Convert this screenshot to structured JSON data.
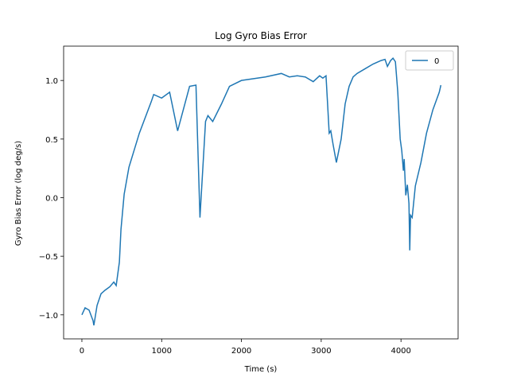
{
  "chart_data": {
    "type": "line",
    "title": "Log Gyro Bias Error",
    "x_label": "Time (s)",
    "y_label": "Gyro Bias Error (log deg/s)",
    "x": [
      0,
      40,
      90,
      140,
      150,
      190,
      240,
      290,
      350,
      400,
      430,
      470,
      490,
      530,
      590,
      720,
      870,
      900,
      1000,
      1100,
      1200,
      1350,
      1430,
      1480,
      1550,
      1580,
      1640,
      1750,
      1850,
      2000,
      2300,
      2500,
      2600,
      2700,
      2800,
      2900,
      2980,
      3020,
      3060,
      3080,
      3100,
      3120,
      3150,
      3190,
      3250,
      3300,
      3350,
      3400,
      3450,
      3550,
      3650,
      3750,
      3800,
      3830,
      3870,
      3900,
      3930,
      3960,
      3990,
      4010,
      4030,
      4040,
      4060,
      4080,
      4100,
      4110,
      4120,
      4140,
      4180,
      4250,
      4320,
      4400,
      4480,
      4500
    ],
    "series": [
      {
        "name": "0",
        "color": "#1f77b4",
        "values": [
          -1.0,
          -0.94,
          -0.96,
          -1.05,
          -1.09,
          -0.92,
          -0.82,
          -0.79,
          -0.76,
          -0.72,
          -0.75,
          -0.55,
          -0.27,
          0.03,
          0.26,
          0.55,
          0.82,
          0.88,
          0.85,
          0.9,
          0.57,
          0.95,
          0.96,
          -0.17,
          0.65,
          0.7,
          0.65,
          0.8,
          0.95,
          1.0,
          1.03,
          1.06,
          1.03,
          1.04,
          1.03,
          0.99,
          1.04,
          1.02,
          1.04,
          0.8,
          0.55,
          0.57,
          0.45,
          0.3,
          0.5,
          0.8,
          0.95,
          1.03,
          1.06,
          1.1,
          1.14,
          1.17,
          1.18,
          1.12,
          1.17,
          1.19,
          1.16,
          0.9,
          0.5,
          0.4,
          0.23,
          0.33,
          0.02,
          0.11,
          -0.05,
          -0.45,
          -0.15,
          -0.17,
          0.1,
          0.3,
          0.55,
          0.75,
          0.9,
          0.96
        ]
      }
    ],
    "xlim": [
      -229,
      4716
    ],
    "ylim": [
      -1.205,
      1.293
    ],
    "xticks": [
      0,
      1000,
      2000,
      3000,
      4000
    ],
    "yticks": [
      {
        "value": -1.0,
        "label": "−1.0"
      },
      {
        "value": -0.5,
        "label": "−0.5"
      },
      {
        "value": 0,
        "label": "0.0"
      },
      0.5,
      {
        "value": 1.0,
        "label": "1.0"
      }
    ],
    "legend": "upper right"
  }
}
